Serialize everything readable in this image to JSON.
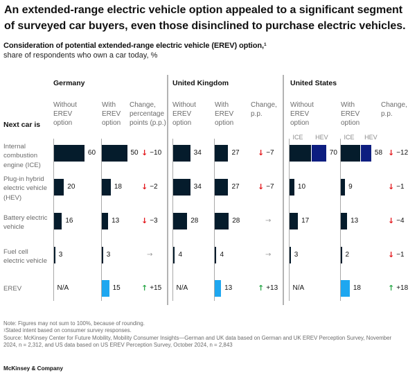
{
  "title": "An extended-range electric vehicle option appealed to a significant segment\nof surveyed car buyers, even those disinclined to purchase electric vehicles.",
  "subtitle": {
    "bold": "Consideration of potential extended-range electric vehicle (EREV) option,",
    "footnote_mark": "1",
    "regular": "share of respondents who own a car today, %"
  },
  "row_header": "Next car is",
  "footnotes": {
    "note": "Note: Figures may not sum to 100%, because of rounding.",
    "footnote_1_mark": "1",
    "footnote_1": "Stated intent based on consumer survey responses.",
    "source": "Source: McKinsey Center for Future Mobility, Mobility Consumer Insights—German and UK data based on German and UK EREV Perception Survey, November\n2024, n = 2,312, and US data based on US EREV Perception Survey, October 2024, n = 2,843"
  },
  "brand": "McKinsey & Company",
  "colors": {
    "bar_primary": "#051C2C",
    "bar_hev": "#0D1E80",
    "bar_erev": "#1EA7F0",
    "decrease": "#E3171C",
    "increase": "#2BA84A",
    "neutral": "#9A9A9A"
  },
  "chart_data": {
    "type": "bar",
    "title": "Consideration of potential extended-range electric vehicle (EREV) option",
    "subtitle": "share of respondents who own a car today, %",
    "unit": "%",
    "categories": [
      "Internal combustion engine (ICE)",
      "Plug-in hybrid electric vehicle (HEV)",
      "Battery electric vehicle",
      "Fuel cell electric vehicle",
      "EREV"
    ],
    "category_labels": [
      "Internal\ncombustion\nengine (ICE)",
      "Plug-in hybrid\nelectric vehicle\n(HEV)",
      "Battery electric\nvehicle",
      "Fuel cell\nelectric vehicle",
      "EREV"
    ],
    "countries": [
      {
        "name": "Germany",
        "column_headers": {
          "without": "Without\nEREV\noption",
          "with": "With\nEREV\noption",
          "change": "Change,\npercentage\npoints (p.p.)"
        },
        "without_erev": [
          60,
          20,
          16,
          3,
          null
        ],
        "with_erev": [
          50,
          18,
          13,
          3,
          15
        ],
        "change_pp": [
          -10,
          -2,
          -3,
          0,
          15
        ],
        "without_erev_labels": [
          "60",
          "20",
          "16",
          "3",
          "N/A"
        ],
        "with_erev_labels": [
          "50",
          "18",
          "13",
          "3",
          "15"
        ],
        "change_labels": [
          "−10",
          "−2",
          "−3",
          "",
          "+15"
        ]
      },
      {
        "name": "United Kingdom",
        "column_headers": {
          "without": "Without\nEREV\noption",
          "with": "With\nEREV\noption",
          "change": "Change,\np.p."
        },
        "without_erev": [
          34,
          34,
          28,
          4,
          null
        ],
        "with_erev": [
          27,
          27,
          28,
          4,
          13
        ],
        "change_pp": [
          -7,
          -7,
          0,
          0,
          13
        ],
        "without_erev_labels": [
          "34",
          "34",
          "28",
          "4",
          "N/A"
        ],
        "with_erev_labels": [
          "27",
          "27",
          "28",
          "4",
          "13"
        ],
        "change_labels": [
          "−7",
          "−7",
          "",
          "",
          "+13"
        ]
      },
      {
        "name": "United States",
        "column_headers": {
          "without": "Without\nEREV\noption",
          "with": "With\nEREV\noption",
          "change": "Change,\np.p."
        },
        "without_erev": [
          70,
          10,
          17,
          3,
          null
        ],
        "with_erev": [
          58,
          9,
          13,
          2,
          18
        ],
        "change_pp": [
          -12,
          -1,
          -4,
          -1,
          18
        ],
        "without_erev_labels": [
          "70",
          "10",
          "17",
          "3",
          "N/A"
        ],
        "with_erev_labels": [
          "58",
          "9",
          "13",
          "2",
          "18"
        ],
        "change_labels": [
          "−12",
          "−1",
          "−4",
          "−1",
          "+18"
        ],
        "stacked": {
          "row_index": 0,
          "segments": [
            "ICE",
            "HEV"
          ],
          "without_erev": [
            42,
            28
          ],
          "with_erev": [
            38,
            20
          ]
        }
      }
    ]
  }
}
